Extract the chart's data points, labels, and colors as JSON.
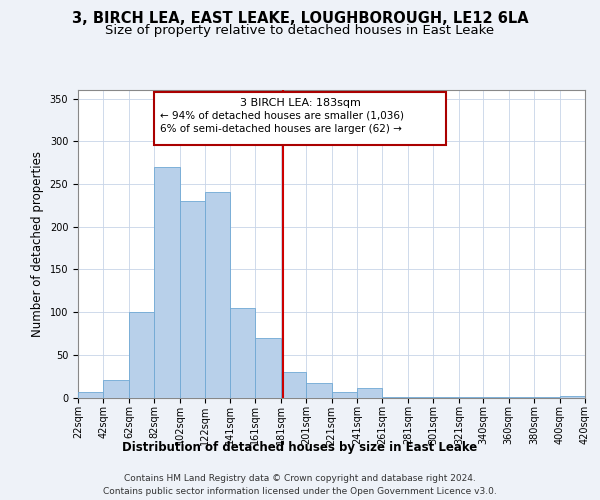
{
  "title": "3, BIRCH LEA, EAST LEAKE, LOUGHBOROUGH, LE12 6LA",
  "subtitle": "Size of property relative to detached houses in East Leake",
  "xlabel": "Distribution of detached houses by size in East Leake",
  "ylabel": "Number of detached properties",
  "bar_color": "#b8d0ea",
  "bar_edgecolor": "#6fa8d4",
  "vertical_line_x": 183,
  "vertical_line_color": "#cc0000",
  "annotation_title": "3 BIRCH LEA: 183sqm",
  "annotation_line1": "← 94% of detached houses are smaller (1,036)",
  "annotation_line2": "6% of semi-detached houses are larger (62) →",
  "annotation_box_edgecolor": "#aa0000",
  "footer_line1": "Contains HM Land Registry data © Crown copyright and database right 2024.",
  "footer_line2": "Contains public sector information licensed under the Open Government Licence v3.0.",
  "bin_edges": [
    22,
    42,
    62,
    82,
    102,
    122,
    141,
    161,
    181,
    201,
    221,
    241,
    261,
    281,
    301,
    321,
    340,
    360,
    380,
    400,
    420
  ],
  "bar_heights": [
    7,
    20,
    100,
    270,
    230,
    241,
    105,
    70,
    30,
    17,
    7,
    11,
    1,
    1,
    1,
    1,
    1,
    1,
    1,
    2
  ],
  "ylim": [
    0,
    360
  ],
  "yticks": [
    0,
    50,
    100,
    150,
    200,
    250,
    300,
    350
  ],
  "background_color": "#eef2f8",
  "plot_background_color": "#ffffff",
  "title_fontsize": 10.5,
  "subtitle_fontsize": 9.5,
  "axis_label_fontsize": 8.5,
  "tick_fontsize": 7,
  "footer_fontsize": 6.5
}
